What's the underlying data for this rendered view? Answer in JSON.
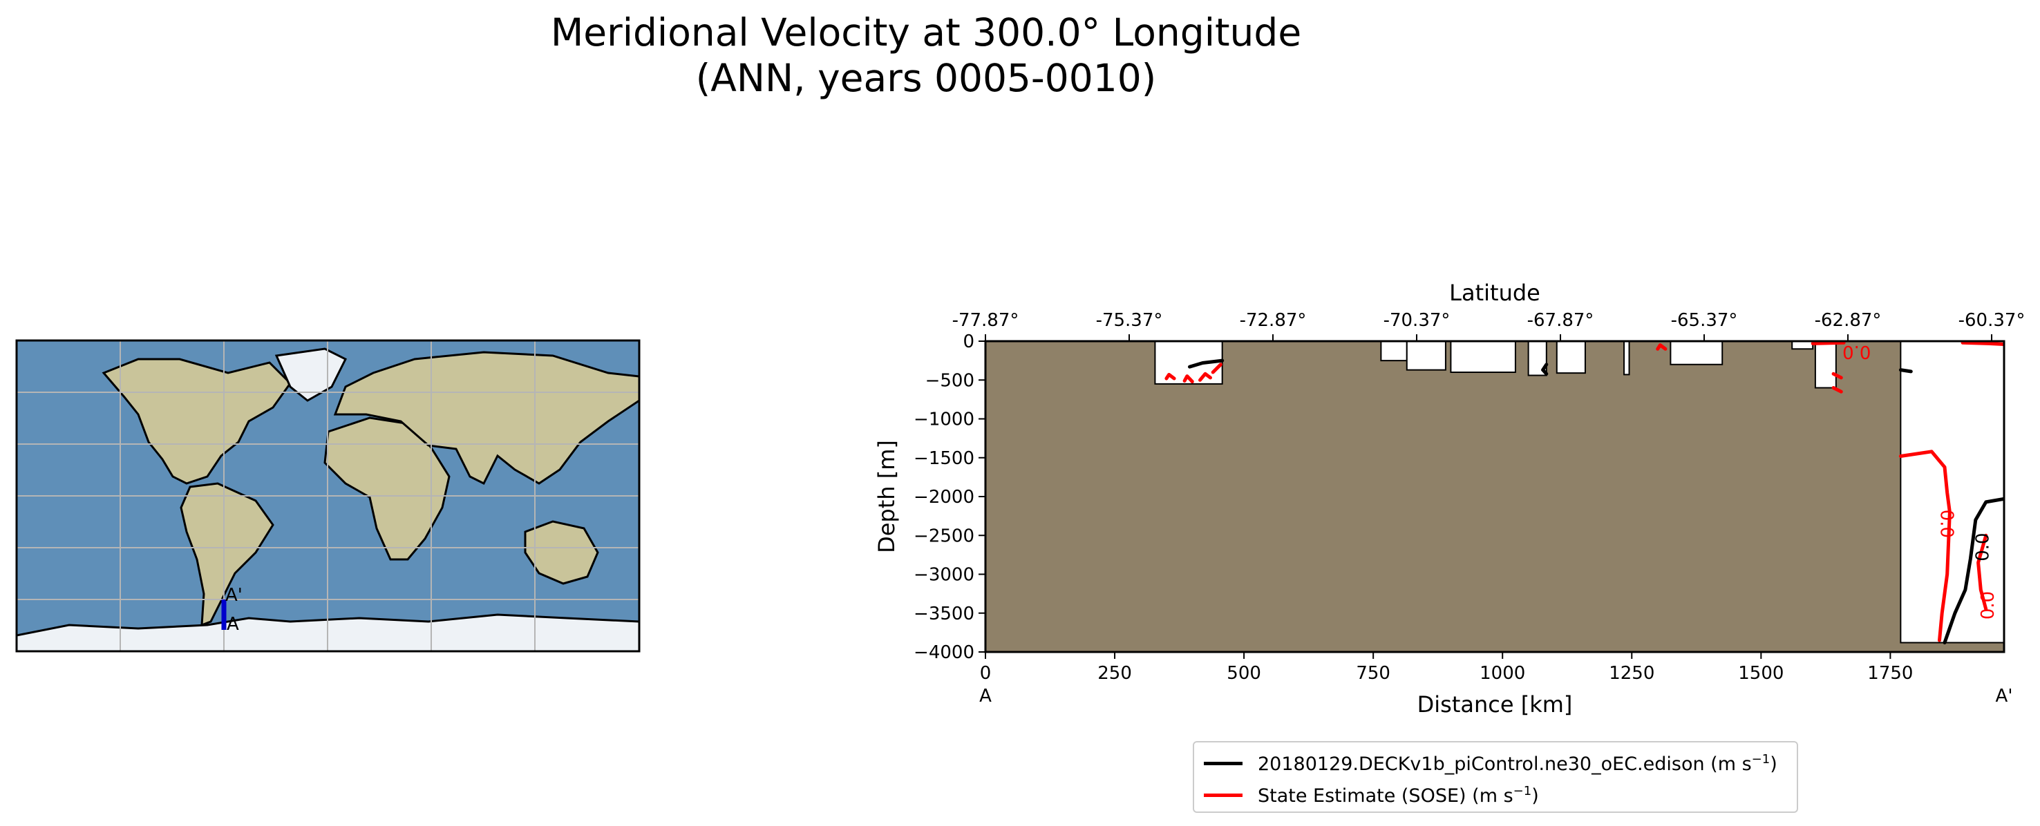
{
  "title": {
    "line1": "Meridional Velocity at 300.0° Longitude",
    "line2": "(ANN, years 0005-0010)"
  },
  "map_inset": {
    "section_start_label": "A",
    "section_end_label": "A'",
    "colors": {
      "ocean": "#5f8fb8",
      "land": "#c9c49a",
      "ice": "#eef2f6",
      "coast": "#000000",
      "section": "#0000cc",
      "grid": "#b5b5b5"
    }
  },
  "chart_data": {
    "type": "contour",
    "xlabel": "Distance [km]",
    "ylabel": "Depth [m]",
    "top_axis_label": "Latitude",
    "xlim": [
      0,
      1970
    ],
    "ylim": [
      -4000,
      0
    ],
    "x_ticks": [
      0,
      250,
      500,
      750,
      1000,
      1250,
      1500,
      1750
    ],
    "y_ticks": [
      0,
      -500,
      -1000,
      -1500,
      -2000,
      -2500,
      -3000,
      -3500,
      -4000
    ],
    "top_ticks": [
      "-77.87°",
      "-75.37°",
      "-72.87°",
      "-70.37°",
      "-67.87°",
      "-65.37°",
      "-62.87°",
      "-60.37°"
    ],
    "top_tick_km": [
      0,
      278,
      556,
      834,
      1112,
      1390,
      1668,
      1946
    ],
    "section_start_label": "A",
    "section_end_label": "A'",
    "land_color": "#8f8168",
    "water_pockets": [
      {
        "x": [
          328,
          458
        ],
        "bottom": -550
      },
      {
        "x": [
          765,
          815
        ],
        "bottom": -250
      },
      {
        "x": [
          815,
          890
        ],
        "bottom": -370
      },
      {
        "x": [
          900,
          1025
        ],
        "bottom": -400
      },
      {
        "x": [
          1050,
          1085
        ],
        "bottom": -440
      },
      {
        "x": [
          1105,
          1160
        ],
        "bottom": -410
      },
      {
        "x": [
          1235,
          1245
        ],
        "bottom": -430
      },
      {
        "x": [
          1325,
          1425
        ],
        "bottom": -300
      },
      {
        "x": [
          1560,
          1600
        ],
        "bottom": -100
      },
      {
        "x": [
          1605,
          1645
        ],
        "bottom": -600
      },
      {
        "x": [
          1770,
          1970
        ],
        "bottom": -3880
      }
    ],
    "series": [
      {
        "name": "20180129.DECKv1b_piControl.ne30_oEC.edison",
        "units": "m s",
        "units_power": "−1",
        "color": "#000000",
        "contour_label": "0.0",
        "contours": [
          [
            [
              395,
              -330
            ],
            [
              420,
              -280
            ],
            [
              458,
              -250
            ]
          ],
          [
            [
              1085,
              -300
            ],
            [
              1078,
              -370
            ],
            [
              1085,
              -420
            ]
          ],
          [
            [
              1770,
              -370
            ],
            [
              1790,
              -390
            ]
          ],
          [
            [
              1970,
              -2030
            ],
            [
              1935,
              -2070
            ],
            [
              1915,
              -2300
            ],
            [
              1905,
              -2800
            ],
            [
              1895,
              -3200
            ],
            [
              1875,
              -3500
            ],
            [
              1855,
              -3880
            ]
          ]
        ]
      },
      {
        "name": "State Estimate (SOSE)",
        "units": "m s",
        "units_power": "−1",
        "color": "#ff0000",
        "contour_label": "0.0",
        "contours": [
          [
            [
              350,
              -480
            ],
            [
              355,
              -430
            ],
            [
              365,
              -480
            ]
          ],
          [
            [
              385,
              -510
            ],
            [
              390,
              -450
            ],
            [
              400,
              -520
            ]
          ],
          [
            [
              415,
              -500
            ],
            [
              425,
              -420
            ],
            [
              435,
              -470
            ]
          ],
          [
            [
              440,
              -400
            ],
            [
              455,
              -300
            ]
          ],
          [
            [
              1300,
              -100
            ],
            [
              1305,
              -50
            ],
            [
              1315,
              -100
            ]
          ],
          [
            [
              1600,
              -30
            ],
            [
              1660,
              -20
            ]
          ],
          [
            [
              1640,
              -420
            ],
            [
              1655,
              -470
            ]
          ],
          [
            [
              1640,
              -600
            ],
            [
              1655,
              -650
            ]
          ],
          [
            [
              1770,
              -1480
            ],
            [
              1830,
              -1420
            ],
            [
              1855,
              -1620
            ],
            [
              1860,
              -1950
            ],
            [
              1865,
              -2200
            ],
            [
              1860,
              -3000
            ],
            [
              1850,
              -3500
            ],
            [
              1845,
              -3850
            ]
          ],
          [
            [
              1935,
              -2500
            ],
            [
              1920,
              -2850
            ],
            [
              1925,
              -3200
            ],
            [
              1935,
              -3450
            ]
          ],
          [
            [
              1890,
              -20
            ],
            [
              1940,
              -30
            ],
            [
              1970,
              -40
            ]
          ]
        ]
      }
    ],
    "legend_placement": "bottom-center"
  }
}
